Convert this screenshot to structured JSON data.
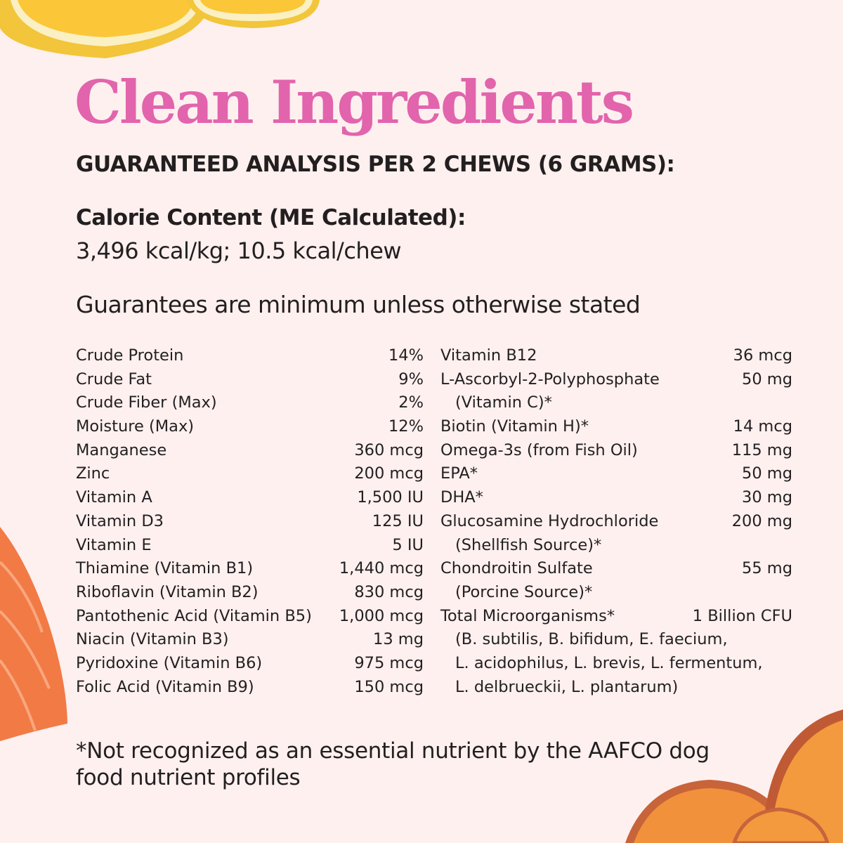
{
  "title": "Clean Ingredients",
  "subtitle": "GUARANTEED ANALYSIS PER 2 CHEWS (6 GRAMS):",
  "calorie": {
    "label": "Calorie Content (ME Calculated):",
    "value": "3,496 kcal/kg; 10.5 kcal/chew"
  },
  "guarantee_note": "Guarantees are minimum unless otherwise stated",
  "left_rows": [
    {
      "label": "Crude Protein",
      "value": "14%"
    },
    {
      "label": "Crude Fat",
      "value": "9%"
    },
    {
      "label": "Crude Fiber (Max)",
      "value": "2%"
    },
    {
      "label": "Moisture (Max)",
      "value": "12%"
    },
    {
      "label": "Manganese",
      "value": "360 mcg"
    },
    {
      "label": "Zinc",
      "value": "200 mcg"
    },
    {
      "label": "Vitamin A",
      "value": "1,500 IU"
    },
    {
      "label": "Vitamin D3",
      "value": "125 IU"
    },
    {
      "label": "Vitamin E",
      "value": "5 IU"
    },
    {
      "label": "Thiamine (Vitamin B1)",
      "value": "1,440 mcg"
    },
    {
      "label": "Riboflavin (Vitamin B2)",
      "value": "830 mcg"
    },
    {
      "label": "Pantothenic Acid (Vitamin B5)",
      "value": "1,000 mcg"
    },
    {
      "label": "Niacin (Vitamin B3)",
      "value": "13 mg"
    },
    {
      "label": "Pyridoxine (Vitamin B6)",
      "value": "975 mcg"
    },
    {
      "label": "Folic Acid (Vitamin B9)",
      "value": "150 mcg"
    }
  ],
  "right_rows": [
    {
      "label": "Vitamin B12",
      "value": "36 mcg"
    },
    {
      "label": "L-Ascorbyl-2-Polyphosphate",
      "value": "50 mg"
    },
    {
      "label": "(Vitamin C)*",
      "value": "",
      "cont": true
    },
    {
      "label": "Biotin (Vitamin H)*",
      "value": "14 mcg"
    },
    {
      "label": "Omega-3s (from Fish Oil)",
      "value": "115 mg"
    },
    {
      "label": "EPA*",
      "value": "50 mg"
    },
    {
      "label": "DHA*",
      "value": "30 mg"
    },
    {
      "label": "Glucosamine Hydrochloride",
      "value": "200 mg"
    },
    {
      "label": "(Shellfish Source)*",
      "value": "",
      "cont": true
    },
    {
      "label": "Chondroitin Sulfate",
      "value": "55 mg"
    },
    {
      "label": "(Porcine Source)*",
      "value": "",
      "cont": true
    },
    {
      "label": "Total Microorganisms*",
      "value": "1 Billion CFU"
    },
    {
      "label": "(B. subtilis, B. bifidum, E. faecium,",
      "value": "",
      "cont": true
    },
    {
      "label": "L. acidophilus, L. brevis, L. fermentum,",
      "value": "",
      "cont": true
    },
    {
      "label": "L. delbrueckii, L. plantarum)",
      "value": "",
      "cont": true
    }
  ],
  "footnote": "*Not recognized as an essential nutrient by the AAFCO dog food nutrient profiles",
  "colors": {
    "background": "#fdf0ef",
    "title": "#e264ac",
    "text": "#231f20"
  }
}
